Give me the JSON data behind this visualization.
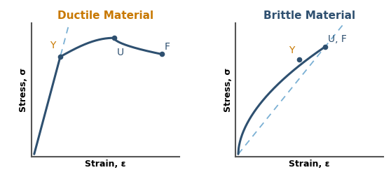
{
  "title_ductile": "Ductile Material",
  "title_brittle": "Brittle Material",
  "xlabel": "Strain, ε",
  "ylabel": "Stress, σ",
  "title_ductile_color": "#c87800",
  "title_brittle_color": "#2f5070",
  "curve_color": "#2e5070",
  "dashed_color": "#7ab0d4",
  "point_color": "#2e5070",
  "label_Y_color": "#c87800",
  "label_UF_color": "#2e5070",
  "background": "#ffffff",
  "title_fontsize": 11,
  "axis_label_fontsize": 9,
  "point_label_fontsize": 10,
  "spine_color": "#555555",
  "figwidth": 5.58,
  "figheight": 2.73,
  "dpi": 100
}
